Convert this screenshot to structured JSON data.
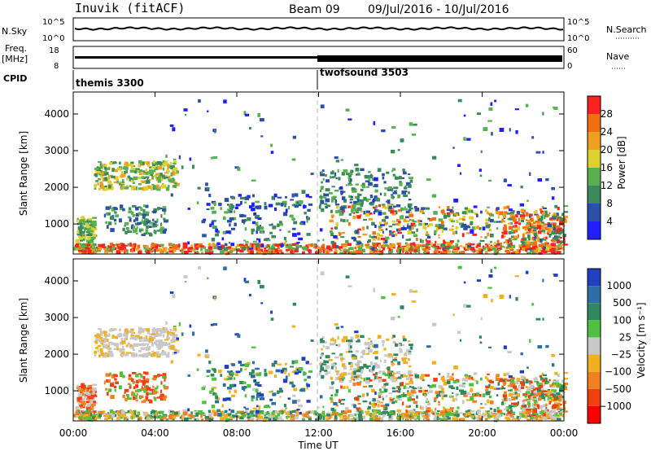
{
  "header": {
    "station": "Inuvik (fitACF)",
    "beam": "Beam 09",
    "date_range": "09/Jul/2016 - 10/Jul/2016"
  },
  "top_panels": {
    "nsky_label": "N.Sky",
    "nsky_ticks": [
      "10^5",
      "10^0"
    ],
    "nsearch_label": "N.Search",
    "nsearch_ticks": [
      "10^5",
      "10^0"
    ],
    "freq_label": "Freq.",
    "freq_unit": "[MHz]",
    "freq_ticks": [
      "18",
      "8"
    ],
    "nave_label": "Nave",
    "nave_ticks": [
      "60",
      "0"
    ],
    "cpid_label": "CPID",
    "cpid_modes": [
      {
        "name": "themis 3300",
        "start_hour": 0
      },
      {
        "name": "twofsound 3503",
        "start_hour": 12
      }
    ]
  },
  "colors": {
    "power_scale": [
      "#2020ff",
      "#2b50a8",
      "#3a8a5a",
      "#58b050",
      "#ddd030",
      "#f0a020",
      "#f07010",
      "#ff2020"
    ],
    "velocity_scale": [
      "#2040c0",
      "#2e6ea8",
      "#308860",
      "#50c040",
      "#c8c8c8",
      "#f0b020",
      "#f08020",
      "#f04010",
      "#ff0000"
    ]
  },
  "chart_data": [
    {
      "type": "heatmap",
      "name": "power",
      "ylabel": "Slant Range [km]",
      "yticks": [
        "1000",
        "2000",
        "3000",
        "4000"
      ],
      "ylim": [
        180,
        4600
      ],
      "xlim_hours": [
        0,
        24
      ],
      "colorbar_label": "Power [dB]",
      "colorbar_ticks": [
        "4",
        "8",
        "12",
        "16",
        "20",
        "24",
        "28"
      ],
      "colorbar_range": [
        0,
        32
      ]
    },
    {
      "type": "heatmap",
      "name": "velocity",
      "ylabel": "Slant Range [km]",
      "yticks": [
        "1000",
        "2000",
        "3000",
        "4000"
      ],
      "ylim": [
        180,
        4600
      ],
      "xlim_hours": [
        0,
        24
      ],
      "xticks": [
        "00:00",
        "04:00",
        "08:00",
        "12:00",
        "16:00",
        "20:00",
        "00:00"
      ],
      "xlabel": "Time UT",
      "colorbar_label": "Velocity [m s⁻¹]",
      "colorbar_ticks": [
        "1000",
        "500",
        "100",
        "25",
        "−25",
        "−100",
        "−500",
        "−1000"
      ]
    }
  ]
}
